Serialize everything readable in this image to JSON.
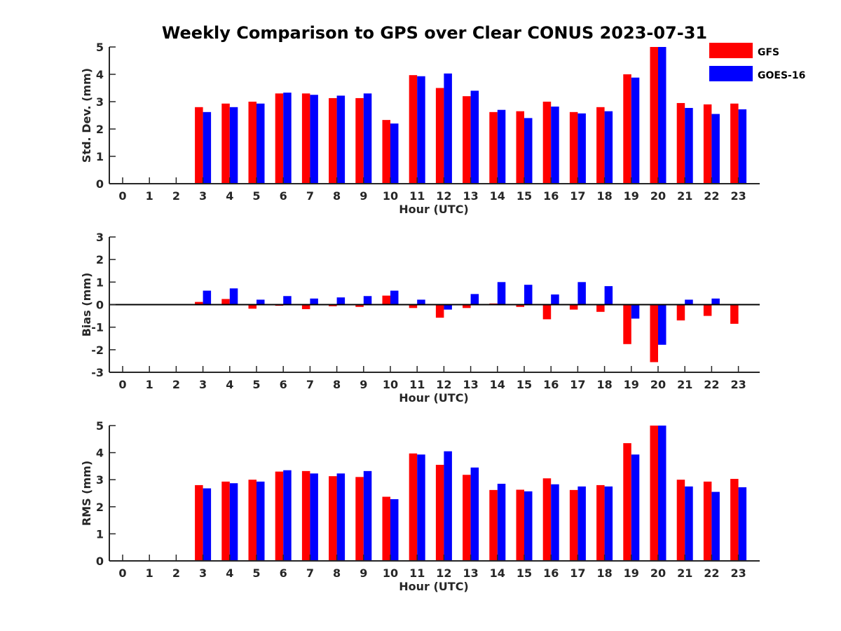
{
  "title": "Weekly Comparison to GPS over Clear CONUS 2023-07-31",
  "legend": [
    {
      "name": "GFS",
      "color": "#ff0000"
    },
    {
      "name": "GOES-16",
      "color": "#0000ff"
    }
  ],
  "chart_data": [
    {
      "type": "bar",
      "id": "std",
      "ylabel": "Std. Dev. (mm)",
      "xlabel": "Hour (UTC)",
      "ylim": [
        0,
        5
      ],
      "yticks": [
        0,
        1,
        2,
        3,
        4,
        5
      ],
      "categories": [
        "0",
        "1",
        "2",
        "3",
        "4",
        "5",
        "6",
        "7",
        "8",
        "9",
        "10",
        "11",
        "12",
        "13",
        "14",
        "15",
        "16",
        "17",
        "18",
        "19",
        "20",
        "21",
        "22",
        "23"
      ],
      "series": [
        {
          "name": "GFS",
          "color": "#ff0000",
          "values": [
            null,
            null,
            null,
            2.8,
            2.93,
            3.0,
            3.3,
            3.3,
            3.13,
            3.13,
            2.33,
            3.97,
            3.5,
            3.2,
            2.62,
            2.65,
            3.0,
            2.62,
            2.8,
            4.0,
            5.0,
            2.95,
            2.9,
            2.93
          ]
        },
        {
          "name": "GOES-16",
          "color": "#0000ff",
          "values": [
            null,
            null,
            null,
            2.62,
            2.8,
            2.93,
            3.33,
            3.25,
            3.22,
            3.3,
            2.2,
            3.93,
            4.03,
            3.4,
            2.7,
            2.4,
            2.82,
            2.57,
            2.65,
            3.88,
            5.0,
            2.77,
            2.55,
            2.72
          ]
        }
      ]
    },
    {
      "type": "bar",
      "id": "bias",
      "ylabel": "Bias (mm)",
      "xlabel": "Hour (UTC)",
      "ylim": [
        -3,
        3
      ],
      "yticks": [
        -3,
        -2,
        -1,
        0,
        1,
        2,
        3
      ],
      "zero_line": true,
      "categories": [
        "0",
        "1",
        "2",
        "3",
        "4",
        "5",
        "6",
        "7",
        "8",
        "9",
        "10",
        "11",
        "12",
        "13",
        "14",
        "15",
        "16",
        "17",
        "18",
        "19",
        "20",
        "21",
        "22",
        "23"
      ],
      "series": [
        {
          "name": "GFS",
          "color": "#ff0000",
          "values": [
            null,
            null,
            null,
            0.12,
            0.25,
            -0.18,
            -0.05,
            -0.2,
            -0.07,
            -0.1,
            0.4,
            -0.15,
            -0.58,
            -0.15,
            0.05,
            -0.1,
            -0.65,
            -0.22,
            -0.32,
            -1.75,
            -2.55,
            -0.7,
            -0.5,
            -0.85
          ]
        },
        {
          "name": "GOES-16",
          "color": "#0000ff",
          "values": [
            null,
            null,
            null,
            0.62,
            0.72,
            0.22,
            0.38,
            0.27,
            0.32,
            0.38,
            0.62,
            0.22,
            -0.22,
            0.47,
            1.0,
            0.88,
            0.45,
            1.0,
            0.82,
            -0.62,
            -1.78,
            0.22,
            0.27,
            null
          ]
        }
      ]
    },
    {
      "type": "bar",
      "id": "rms",
      "ylabel": "RMS (mm)",
      "xlabel": "Hour (UTC)",
      "ylim": [
        0,
        5
      ],
      "yticks": [
        0,
        1,
        2,
        3,
        4,
        5
      ],
      "categories": [
        "0",
        "1",
        "2",
        "3",
        "4",
        "5",
        "6",
        "7",
        "8",
        "9",
        "10",
        "11",
        "12",
        "13",
        "14",
        "15",
        "16",
        "17",
        "18",
        "19",
        "20",
        "21",
        "22",
        "23"
      ],
      "series": [
        {
          "name": "GFS",
          "color": "#ff0000",
          "values": [
            null,
            null,
            null,
            2.8,
            2.93,
            3.0,
            3.3,
            3.32,
            3.13,
            3.1,
            2.37,
            3.97,
            3.55,
            3.18,
            2.62,
            2.63,
            3.05,
            2.62,
            2.8,
            4.35,
            5.0,
            3.0,
            2.93,
            3.03
          ]
        },
        {
          "name": "GOES-16",
          "color": "#0000ff",
          "values": [
            null,
            null,
            null,
            2.68,
            2.87,
            2.93,
            3.35,
            3.23,
            3.23,
            3.32,
            2.28,
            3.93,
            4.05,
            3.45,
            2.85,
            2.57,
            2.83,
            2.75,
            2.75,
            3.93,
            5.0,
            2.75,
            2.55,
            2.72
          ]
        }
      ]
    }
  ]
}
